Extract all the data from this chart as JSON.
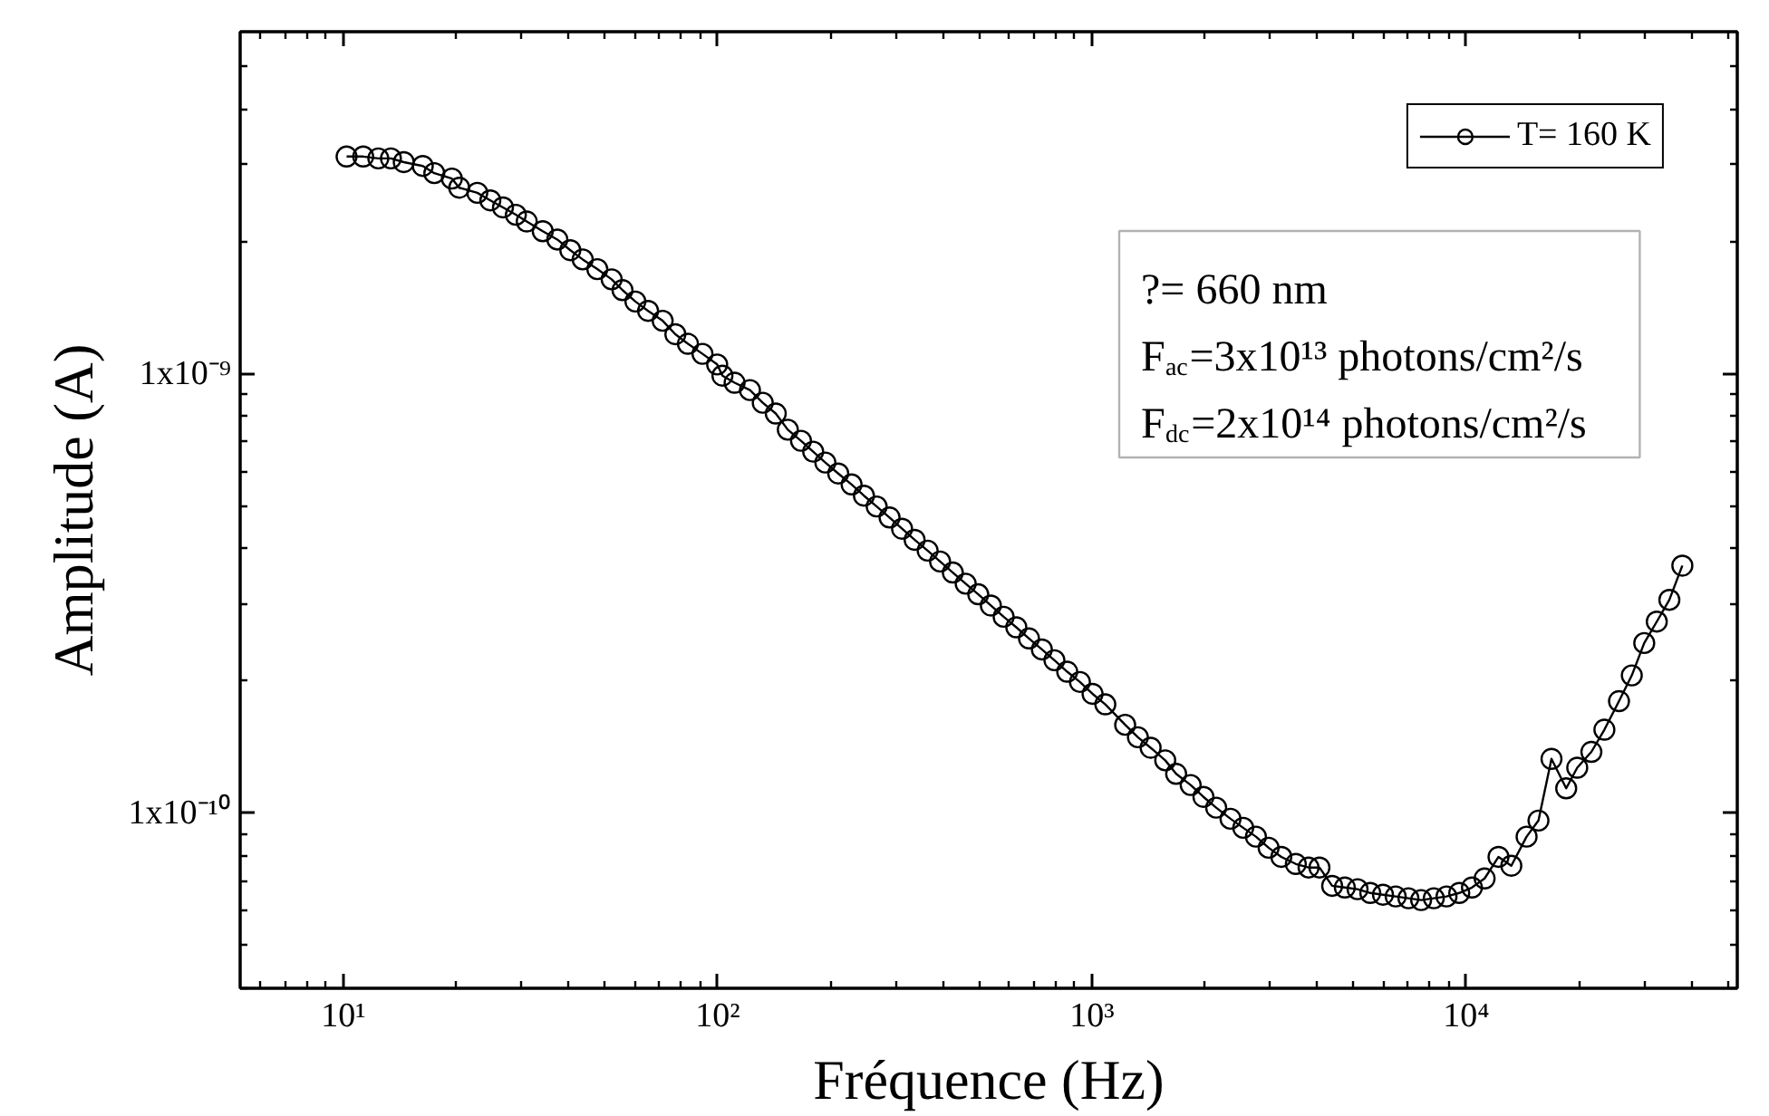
{
  "chart_data": {
    "type": "line",
    "xlabel": "Fréquence (Hz)",
    "ylabel": "Amplitude (A)",
    "log": "xy",
    "xlim": [
      5.3,
      53000
    ],
    "ylim": [
      4e-11,
      6e-09
    ],
    "xticks": [
      {
        "value": 10,
        "label": "10¹"
      },
      {
        "value": 100,
        "label": "10²"
      },
      {
        "value": 1000,
        "label": "10³"
      },
      {
        "value": 10000,
        "label": "10⁴"
      }
    ],
    "yticks": [
      {
        "value": 1e-10,
        "label": "1x10⁻¹⁰"
      },
      {
        "value": 1e-09,
        "label": "1x10⁻⁹"
      }
    ],
    "x": [
      10.2,
      11.3,
      12.4,
      13.4,
      14.5,
      16.3,
      17.5,
      19.5,
      20.4,
      22.8,
      24.7,
      26.7,
      28.9,
      30.9,
      34.1,
      37.3,
      40.4,
      43.6,
      47.7,
      52.1,
      55.7,
      60.3,
      65.2,
      71.3,
      77.1,
      83.3,
      91.1,
      99.7,
      103,
      111,
      122,
      132,
      143,
      154,
      167,
      180,
      194,
      210,
      228,
      246,
      266,
      288,
      311,
      336,
      364,
      393,
      425,
      460,
      497,
      537,
      581,
      628,
      679,
      735,
      794,
      859,
      929,
      1004,
      1086,
      1227,
      1327,
      1435,
      1570,
      1679,
      1836,
      1986,
      2148,
      2346,
      2537,
      2743,
      2966,
      3207,
      3506,
      3792,
      4054,
      4384,
      4740,
      5126,
      5543,
      5994,
      6481,
      7008,
      7578,
      8194,
      8860,
      9581,
      10360,
      11200,
      12200,
      13200,
      14500,
      15600,
      16900,
      18500,
      19800,
      21600,
      23400,
      25600,
      27700,
      29900,
      32300,
      34900,
      37800
    ],
    "series": [
      {
        "name": "T= 160 K",
        "color": "#000000",
        "values": [
          3.12e-09,
          3.12e-09,
          3.09e-09,
          3.09e-09,
          3.03e-09,
          2.97e-09,
          2.86e-09,
          2.78e-09,
          2.65e-09,
          2.58e-09,
          2.48e-09,
          2.39e-09,
          2.3e-09,
          2.22e-09,
          2.11e-09,
          2.02e-09,
          1.91e-09,
          1.82e-09,
          1.73e-09,
          1.64e-09,
          1.55e-09,
          1.46e-09,
          1.39e-09,
          1.32e-09,
          1.23e-09,
          1.17e-09,
          1.11e-09,
          1.05e-09,
          9.9e-10,
          9.54e-10,
          9.18e-10,
          8.59e-10,
          8.12e-10,
          7.46e-10,
          7.04e-10,
          6.65e-10,
          6.28e-10,
          5.93e-10,
          5.6e-10,
          5.28e-10,
          4.99e-10,
          4.71e-10,
          4.44e-10,
          4.19e-10,
          3.96e-10,
          3.74e-10,
          3.53e-10,
          3.33e-10,
          3.15e-10,
          2.97e-10,
          2.8e-10,
          2.65e-10,
          2.5e-10,
          2.36e-10,
          2.23e-10,
          2.1e-10,
          1.99e-10,
          1.87e-10,
          1.77e-10,
          1.59e-10,
          1.49e-10,
          1.41e-10,
          1.32e-10,
          1.23e-10,
          1.16e-10,
          1.09e-10,
          1.03e-10,
          9.72e-11,
          9.27e-11,
          8.85e-11,
          8.35e-11,
          7.96e-11,
          7.67e-11,
          7.53e-11,
          7.53e-11,
          6.84e-11,
          6.78e-11,
          6.72e-11,
          6.59e-11,
          6.53e-11,
          6.47e-11,
          6.41e-11,
          6.35e-11,
          6.41e-11,
          6.47e-11,
          6.59e-11,
          6.78e-11,
          7.11e-11,
          7.96e-11,
          7.6e-11,
          8.85e-11,
          9.63e-11,
          1.33e-10,
          1.14e-10,
          1.27e-10,
          1.38e-10,
          1.55e-10,
          1.8e-10,
          2.06e-10,
          2.44e-10,
          2.73e-10,
          3.06e-10,
          3.66e-10
        ]
      }
    ],
    "marker": "circle",
    "legend": "top right",
    "grid": false,
    "annotations": [
      "?= 660 nm",
      "F$_{ac}$=3x10¹³ photons/cm²/s",
      "F$_{dc}$=2x10¹⁴ photons/cm²/s"
    ]
  }
}
